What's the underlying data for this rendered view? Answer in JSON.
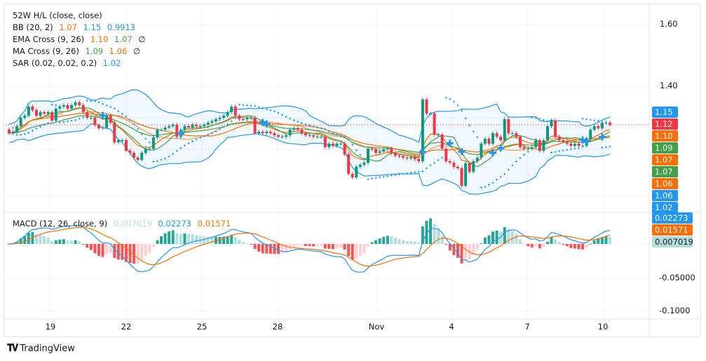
{
  "legend": {
    "hl": "52W H/L (close, close)",
    "bb": {
      "label": "BB (20, 2)",
      "basis": "1.07",
      "upper": "1.15",
      "lower": "0.9913"
    },
    "ema": {
      "label": "EMA Cross (9, 26)",
      "short": "1.10",
      "long": "1.07",
      "icon": "∅"
    },
    "ma": {
      "label": "MA Cross (9, 26)",
      "short": "1.09",
      "long": "1.06",
      "icon": "∅"
    },
    "sar": {
      "label": "SAR (0.02, 0.02, 0.2)",
      "value": "1.02"
    },
    "macd": {
      "label": "MACD (12, 26, close, 9)",
      "hist": "0.007019",
      "macd": "0.02273",
      "signal": "0.01571"
    }
  },
  "price_axis": {
    "ticks": [
      "1.60",
      "1.40"
    ]
  },
  "price_labels": [
    {
      "text": "1.15",
      "color": "#2196F3"
    },
    {
      "text": "1.12",
      "color": "#F23645"
    },
    {
      "text": "1.10",
      "color": "#FF6D00"
    },
    {
      "text": "1.09",
      "color": "#43A047"
    },
    {
      "text": "1.07",
      "color": "#FF6D00"
    },
    {
      "text": "1.07",
      "color": "#43A047"
    },
    {
      "text": "1.06",
      "color": "#FF6D00"
    },
    {
      "text": "1.06",
      "color": "#2196F3"
    },
    {
      "text": "1.02",
      "color": "#2196F3"
    }
  ],
  "macd_axis": {
    "ticks": [
      "-0.05000",
      "-0.1000"
    ]
  },
  "macd_labels": [
    {
      "text": "0.02273",
      "color": "#2196F3",
      "text_color": "#ffffff"
    },
    {
      "text": "0.01571",
      "color": "#FF6D00",
      "text_color": "#ffffff"
    },
    {
      "text": "0.007019",
      "color": "#B2DFDB",
      "text_color": "#131722"
    }
  ],
  "time_axis": [
    "19",
    "22",
    "25",
    "28",
    "Nov",
    "4",
    "7",
    "10"
  ],
  "branding": "TradingView",
  "colors": {
    "up": "#089981",
    "down": "#F23645",
    "bb": "#2196F3",
    "ema_short": "#FF6D00",
    "ema_long": "#43A047",
    "ma_short": "#43A047",
    "ma_long": "#FF6D00",
    "sar": "#2196F3",
    "macd": "#2196F3",
    "signal": "#FF6D00",
    "hist_up_strong": "#26A69A",
    "hist_up_weak": "#B2DFDB",
    "hist_down_strong": "#FF5252",
    "hist_down_weak": "#FFCDD2"
  },
  "chart_data": {
    "type": "candlestick",
    "x_ticks": [
      "19",
      "22",
      "25",
      "28",
      "Nov",
      "4",
      "7",
      "10"
    ],
    "first_open": 1.1,
    "close": [
      1.084,
      1.09,
      1.114,
      1.15,
      1.159,
      1.198,
      1.183,
      1.159,
      1.174,
      1.168,
      1.174,
      1.138,
      1.189,
      1.198,
      1.204,
      1.189,
      1.204,
      1.216,
      1.204,
      1.174,
      1.15,
      1.15,
      1.12,
      1.105,
      1.108,
      1.159,
      1.129,
      1.045,
      1.054,
      1.054,
      1.009,
      1.0,
      0.979,
      0.97,
      1.0,
      1.018,
      1.018,
      1.066,
      1.099,
      1.099,
      1.108,
      1.114,
      1.12,
      1.069,
      1.099,
      1.114,
      1.108,
      1.12,
      1.114,
      1.114,
      1.12,
      1.129,
      1.135,
      1.144,
      1.15,
      1.159,
      1.174,
      1.198,
      1.159,
      1.144,
      1.144,
      1.15,
      1.15,
      1.084,
      1.09,
      1.084,
      1.09,
      1.084,
      1.075,
      1.069,
      1.069,
      1.075,
      1.099,
      1.105,
      1.099,
      1.084,
      1.075,
      1.075,
      1.069,
      1.069,
      1.069,
      1.024,
      1.039,
      1.03,
      1.039,
      1.039,
      0.994,
      0.91,
      0.895,
      0.94,
      0.949,
      0.958,
      1.018,
      1.015,
      1.0,
      1.006,
      1.015,
      1.018,
      1.0,
      0.988,
      0.985,
      0.979,
      0.976,
      0.982,
      0.973,
      0.964,
      1.228,
      1.168,
      1.168,
      1.078,
      1.078,
      1.018,
      0.964,
      0.958,
      0.94,
      0.934,
      0.859,
      0.955,
      0.919,
      0.964,
      0.979,
      1.039,
      1.06,
      1.039,
      1.084,
      1.069,
      1.054,
      1.144,
      1.084,
      1.084,
      1.069,
      1.024,
      1.018,
      1.018,
      1.024,
      1.054,
      1.009,
      1.054,
      1.114,
      1.138,
      1.069,
      1.054,
      1.048,
      1.039,
      1.03,
      1.039,
      1.03,
      1.03,
      1.06,
      1.099,
      1.114,
      1.105,
      1.129,
      1.129,
      1.12
    ],
    "last_price": 1.12,
    "indicators": [
      "BB (20, 2)",
      "EMA Cross (9, 26)",
      "MA Cross (9, 26)",
      "SAR (0.02, 0.02, 0.2)",
      "MACD (12, 26, close, 9)"
    ],
    "macd_ticks": [
      0,
      -0.05,
      -0.1
    ],
    "grid": true
  }
}
